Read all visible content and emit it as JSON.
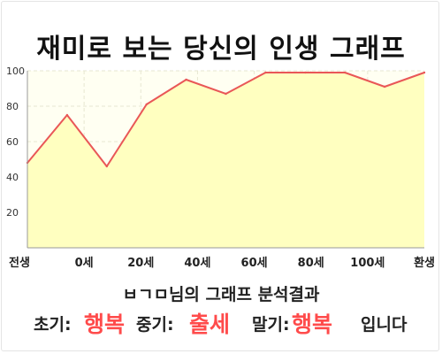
{
  "page": {
    "title": "재미로 보는 당신의 인생 그래프"
  },
  "chart_data": {
    "type": "area",
    "title": "재미로 보는 당신의 인생 그래프",
    "x_tick_labels": [
      "전생",
      "0세",
      "20세",
      "40세",
      "60세",
      "80세",
      "100세",
      "환생"
    ],
    "y_ticks": [
      20,
      40,
      60,
      80,
      100
    ],
    "ylim": [
      0,
      100
    ],
    "grid": true,
    "series": [
      {
        "values": [
          48,
          75,
          46,
          81,
          95,
          87,
          99,
          99,
          99,
          91,
          99
        ]
      }
    ],
    "colors": {
      "line": "#e95757",
      "fill": "#ffffc0",
      "plot_bg": "#fffff2",
      "grid": "#e7e7d2",
      "axis": "#999999"
    }
  },
  "summary": {
    "name": "ㅂㄱㅁ",
    "line": "님의 그래프 분석결과",
    "early_label": "초기:",
    "early_value": "행복",
    "mid_label": "중기:",
    "mid_value": "출세",
    "late_label": "말기:",
    "late_value": "행복",
    "ending": "입니다"
  }
}
